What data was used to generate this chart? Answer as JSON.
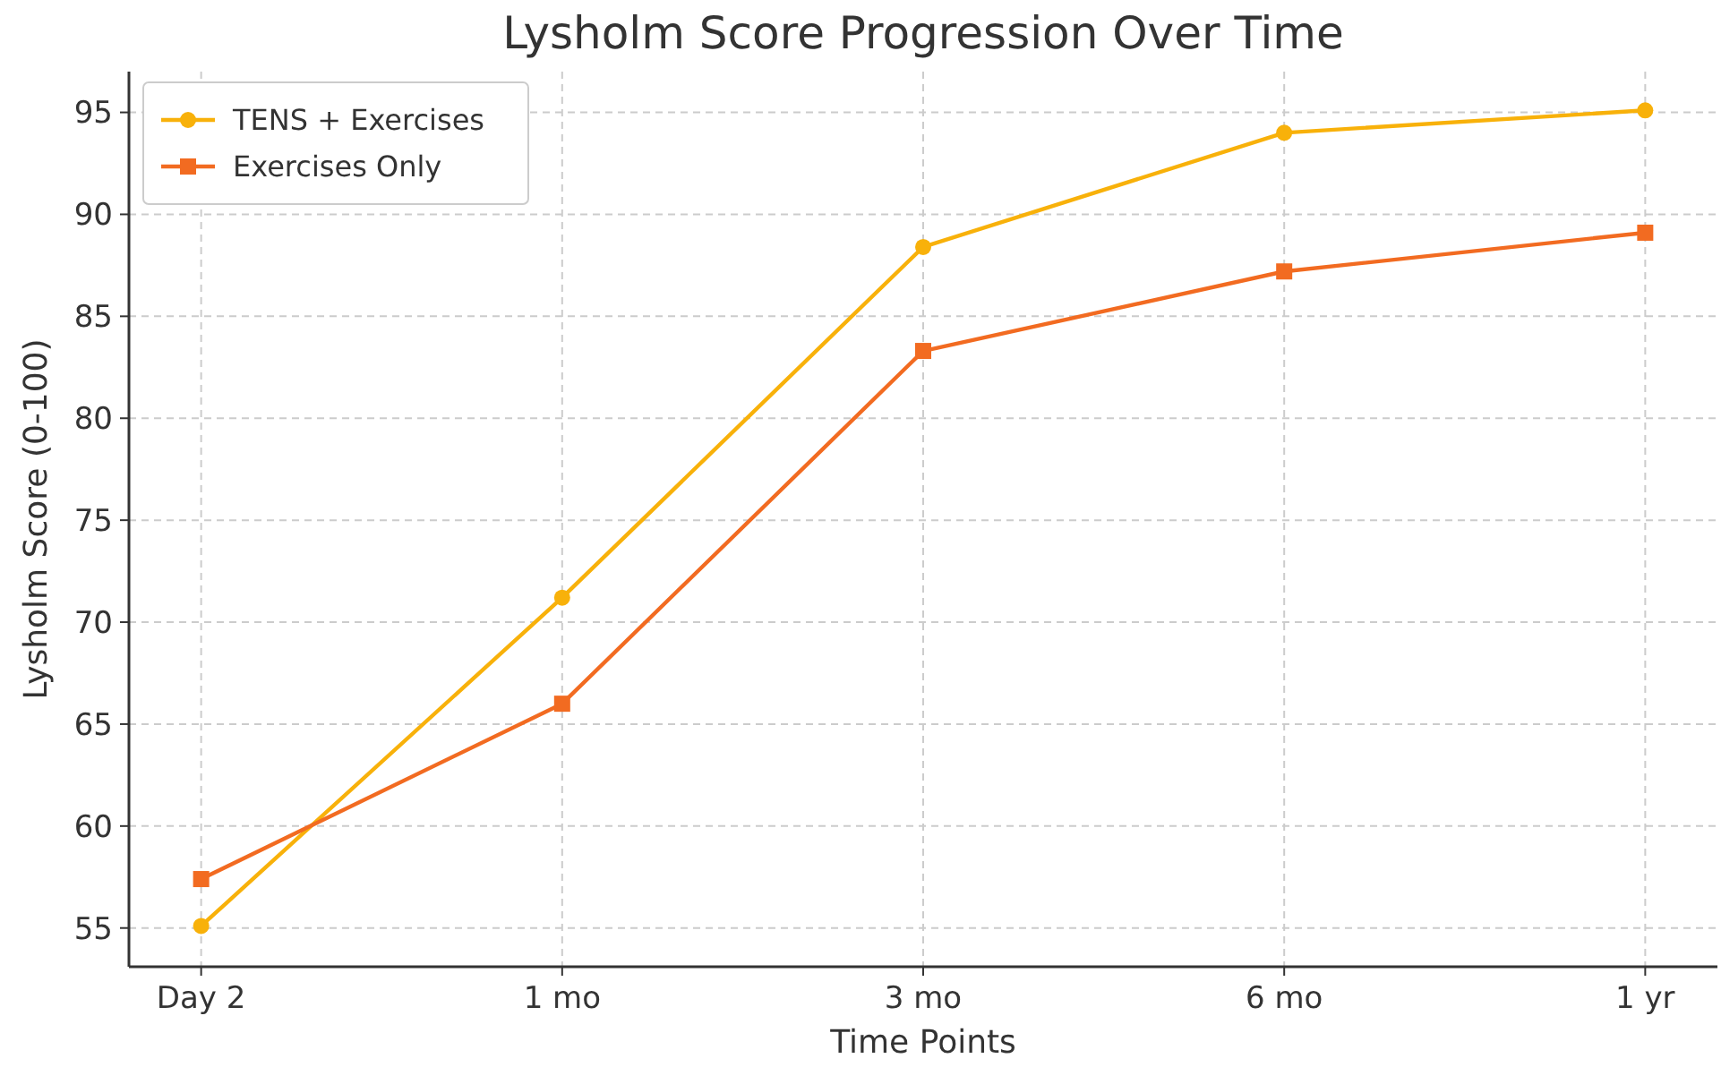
{
  "chart_data": {
    "type": "line",
    "title": "Lysholm Score Progression Over Time",
    "xlabel": "Time Points",
    "ylabel": "Lysholm Score (0-100)",
    "categories": [
      "Day 2",
      "1 mo",
      "3 mo",
      "6 mo",
      "1 yr"
    ],
    "series": [
      {
        "name": "TENS + Exercises",
        "color": "#f8b10a",
        "values": [
          55.1,
          71.2,
          88.4,
          94,
          95.1
        ],
        "marker": "circle"
      },
      {
        "name": "Exercises Only",
        "color": "#f26b21",
        "values": [
          57.4,
          66,
          83.3,
          87.2,
          89.1
        ],
        "marker": "square"
      }
    ],
    "ylim": [
      53.1,
      97
    ],
    "yticks": [
      55,
      60,
      65,
      70,
      75,
      80,
      85,
      90,
      95
    ],
    "grid": true,
    "legend": "top left",
    "line_style": "solid"
  }
}
